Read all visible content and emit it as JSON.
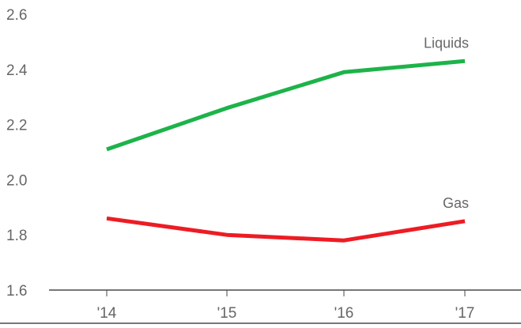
{
  "chart_data": {
    "type": "line",
    "categories": [
      "'14",
      "'15",
      "'16",
      "'17"
    ],
    "ylim": [
      1.6,
      2.6
    ],
    "yticks": [
      "1.6",
      "1.8",
      "2.0",
      "2.2",
      "2.4",
      "2.6"
    ],
    "grid": false,
    "series": [
      {
        "name": "Liquids",
        "values": [
          2.11,
          2.26,
          2.39,
          2.43
        ],
        "color": "#1db34a"
      },
      {
        "name": "Gas",
        "values": [
          1.86,
          1.8,
          1.78,
          1.85
        ],
        "color": "#ed1c24"
      }
    ]
  }
}
